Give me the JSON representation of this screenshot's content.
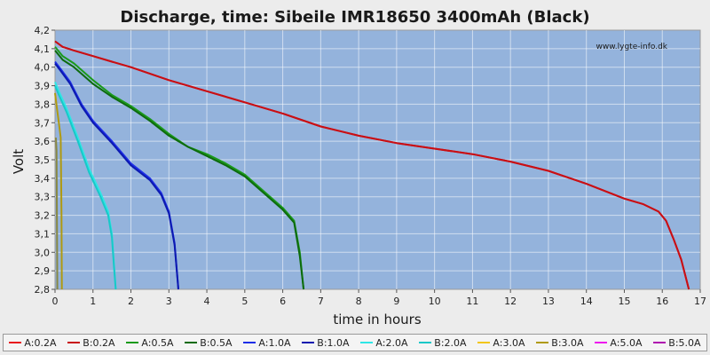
{
  "chart_data": {
    "type": "line",
    "title": "Discharge, time: Sibeile IMR18650 3400mAh (Black)",
    "watermark": "www.lygte-info.dk",
    "xlabel": "time in hours",
    "ylabel": "Volt",
    "xlim": [
      0,
      17
    ],
    "ylim": [
      2.8,
      4.2
    ],
    "x_ticks": [
      0,
      1,
      2,
      3,
      4,
      5,
      6,
      7,
      8,
      9,
      10,
      11,
      12,
      13,
      14,
      15,
      16,
      17
    ],
    "y_ticks": [
      "2,8",
      "2,9",
      "3,0",
      "3,1",
      "3,2",
      "3,3",
      "3,4",
      "3,5",
      "3,6",
      "3,7",
      "3,8",
      "3,9",
      "4,0",
      "4,1",
      "4,2"
    ],
    "grid": true,
    "plot_background": "#94b3dc",
    "legend_position": "bottom",
    "series": [
      {
        "name": "A:0.2A",
        "color": "#e8161c",
        "points": [
          [
            0,
            4.14
          ],
          [
            0.2,
            4.11
          ],
          [
            0.5,
            4.09
          ],
          [
            1,
            4.06
          ],
          [
            1.5,
            4.03
          ],
          [
            2,
            4.0
          ],
          [
            3,
            3.93
          ],
          [
            4,
            3.87
          ],
          [
            5,
            3.81
          ],
          [
            6,
            3.75
          ],
          [
            7,
            3.68
          ],
          [
            8,
            3.63
          ],
          [
            9,
            3.59
          ],
          [
            10,
            3.56
          ],
          [
            11,
            3.53
          ],
          [
            12,
            3.49
          ],
          [
            13,
            3.44
          ],
          [
            14,
            3.37
          ],
          [
            15,
            3.29
          ],
          [
            15.5,
            3.26
          ],
          [
            15.9,
            3.22
          ],
          [
            16.1,
            3.17
          ],
          [
            16.3,
            3.07
          ],
          [
            16.5,
            2.96
          ],
          [
            16.7,
            2.8
          ]
        ]
      },
      {
        "name": "B:0.2A",
        "color": "#c80f14",
        "points": [
          [
            0,
            4.14
          ],
          [
            0.2,
            4.11
          ],
          [
            0.5,
            4.09
          ],
          [
            1,
            4.06
          ],
          [
            1.5,
            4.03
          ],
          [
            2,
            4.0
          ],
          [
            3,
            3.93
          ],
          [
            4,
            3.87
          ],
          [
            5,
            3.81
          ],
          [
            6,
            3.75
          ],
          [
            7,
            3.68
          ],
          [
            8,
            3.63
          ],
          [
            9,
            3.59
          ],
          [
            10,
            3.56
          ],
          [
            11,
            3.53
          ],
          [
            12,
            3.49
          ],
          [
            13,
            3.44
          ],
          [
            14,
            3.37
          ],
          [
            15,
            3.29
          ],
          [
            15.5,
            3.26
          ],
          [
            15.9,
            3.22
          ],
          [
            16.1,
            3.17
          ],
          [
            16.3,
            3.07
          ],
          [
            16.5,
            2.96
          ],
          [
            16.7,
            2.8
          ]
        ]
      },
      {
        "name": "A:0.5A",
        "color": "#1a9a1a",
        "points": [
          [
            0,
            4.11
          ],
          [
            0.2,
            4.06
          ],
          [
            0.5,
            4.02
          ],
          [
            1,
            3.93
          ],
          [
            1.5,
            3.85
          ],
          [
            2,
            3.79
          ],
          [
            2.5,
            3.72
          ],
          [
            3,
            3.64
          ],
          [
            3.5,
            3.57
          ],
          [
            4,
            3.53
          ],
          [
            4.5,
            3.48
          ],
          [
            5,
            3.42
          ],
          [
            5.5,
            3.33
          ],
          [
            6,
            3.24
          ],
          [
            6.3,
            3.17
          ],
          [
            6.45,
            3.0
          ],
          [
            6.55,
            2.8
          ]
        ]
      },
      {
        "name": "B:0.5A",
        "color": "#0d6b0d",
        "points": [
          [
            0,
            4.09
          ],
          [
            0.2,
            4.04
          ],
          [
            0.5,
            4.0
          ],
          [
            1,
            3.91
          ],
          [
            1.5,
            3.84
          ],
          [
            2,
            3.78
          ],
          [
            2.5,
            3.71
          ],
          [
            3,
            3.63
          ],
          [
            3.5,
            3.57
          ],
          [
            4,
            3.52
          ],
          [
            4.5,
            3.47
          ],
          [
            5,
            3.41
          ],
          [
            5.5,
            3.32
          ],
          [
            6,
            3.23
          ],
          [
            6.3,
            3.16
          ],
          [
            6.45,
            2.98
          ],
          [
            6.55,
            2.8
          ]
        ]
      },
      {
        "name": "A:1.0A",
        "color": "#1e2ee8",
        "points": [
          [
            0,
            4.03
          ],
          [
            0.15,
            3.99
          ],
          [
            0.4,
            3.92
          ],
          [
            0.7,
            3.8
          ],
          [
            1,
            3.71
          ],
          [
            1.5,
            3.6
          ],
          [
            2,
            3.48
          ],
          [
            2.5,
            3.4
          ],
          [
            2.8,
            3.32
          ],
          [
            3,
            3.22
          ],
          [
            3.15,
            3.05
          ],
          [
            3.25,
            2.8
          ]
        ]
      },
      {
        "name": "B:1.0A",
        "color": "#0c1ab0",
        "points": [
          [
            0,
            4.02
          ],
          [
            0.15,
            3.98
          ],
          [
            0.4,
            3.91
          ],
          [
            0.7,
            3.79
          ],
          [
            1,
            3.7
          ],
          [
            1.5,
            3.59
          ],
          [
            2,
            3.47
          ],
          [
            2.5,
            3.39
          ],
          [
            2.8,
            3.31
          ],
          [
            3,
            3.21
          ],
          [
            3.15,
            3.04
          ],
          [
            3.25,
            2.8
          ]
        ]
      },
      {
        "name": "A:2.0A",
        "color": "#2ee6e6",
        "points": [
          [
            0,
            3.92
          ],
          [
            0.1,
            3.87
          ],
          [
            0.3,
            3.78
          ],
          [
            0.6,
            3.62
          ],
          [
            0.9,
            3.45
          ],
          [
            1.2,
            3.32
          ],
          [
            1.4,
            3.22
          ],
          [
            1.5,
            3.1
          ],
          [
            1.55,
            2.95
          ],
          [
            1.6,
            2.8
          ]
        ]
      },
      {
        "name": "B:2.0A",
        "color": "#18c8c8",
        "points": [
          [
            0,
            3.9
          ],
          [
            0.1,
            3.85
          ],
          [
            0.3,
            3.76
          ],
          [
            0.6,
            3.6
          ],
          [
            0.9,
            3.43
          ],
          [
            1.2,
            3.3
          ],
          [
            1.4,
            3.2
          ],
          [
            1.5,
            3.08
          ],
          [
            1.55,
            2.93
          ],
          [
            1.6,
            2.8
          ]
        ]
      },
      {
        "name": "A:3.0A",
        "color": "#f2c618",
        "points": []
      },
      {
        "name": "B:3.0A",
        "color": "#b09a10",
        "points": [
          [
            0,
            3.86
          ],
          [
            0.05,
            3.78
          ],
          [
            0.1,
            3.7
          ],
          [
            0.15,
            3.62
          ],
          [
            0.17,
            3.2
          ],
          [
            0.18,
            2.8
          ]
        ]
      },
      {
        "name": "A:5.0A",
        "color": "#ee18ee",
        "points": []
      },
      {
        "name": "B:5.0A",
        "color": "#b010b0",
        "points": []
      },
      {
        "name": "",
        "color": "#888844",
        "points": [
          [
            0.02,
            3.62
          ],
          [
            0.04,
            3.55
          ],
          [
            0.05,
            3.2
          ],
          [
            0.06,
            2.8
          ]
        ]
      }
    ]
  }
}
